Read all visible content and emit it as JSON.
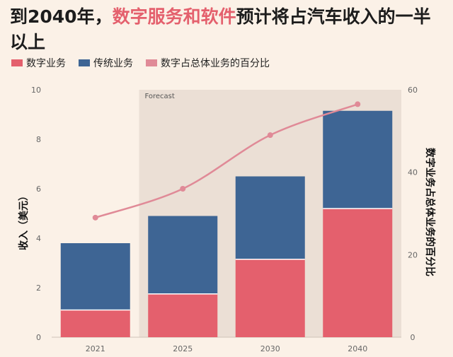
{
  "header": {
    "title_part1": "到2040年，",
    "title_highlight": "数字服务和软件",
    "title_part2": "预计将占汽车收入的一半以上"
  },
  "colors": {
    "digital": "#e4606d",
    "traditional": "#3e6594",
    "share_line": "#e08a97",
    "forecast_band": "#ebdfd5",
    "background": "#fbf1e7"
  },
  "chart_data": {
    "type": "bar",
    "stacked": true,
    "categories": [
      "2021",
      "2025",
      "2030",
      "2040"
    ],
    "series": [
      {
        "name": "数字业务",
        "axis": "left",
        "values": [
          1.1,
          1.75,
          3.15,
          5.2
        ]
      },
      {
        "name": "传统业务",
        "axis": "left",
        "values": [
          2.7,
          3.15,
          3.35,
          3.95
        ]
      },
      {
        "name": "数字占总体业务的百分比",
        "type": "line",
        "axis": "right",
        "values": [
          29,
          36,
          49,
          56.5
        ]
      }
    ],
    "forecast_label": "Forecast",
    "forecast_from_category": "2025",
    "ylabel": "收入（美元）",
    "y2label": "数字业务占总体业务的百分比",
    "ylim": [
      0,
      10
    ],
    "y2lim": [
      0,
      60
    ],
    "yticks": [
      0,
      2,
      4,
      6,
      8,
      10
    ],
    "y2ticks": [
      0,
      20,
      40,
      60
    ],
    "legend_position": "top-left"
  }
}
